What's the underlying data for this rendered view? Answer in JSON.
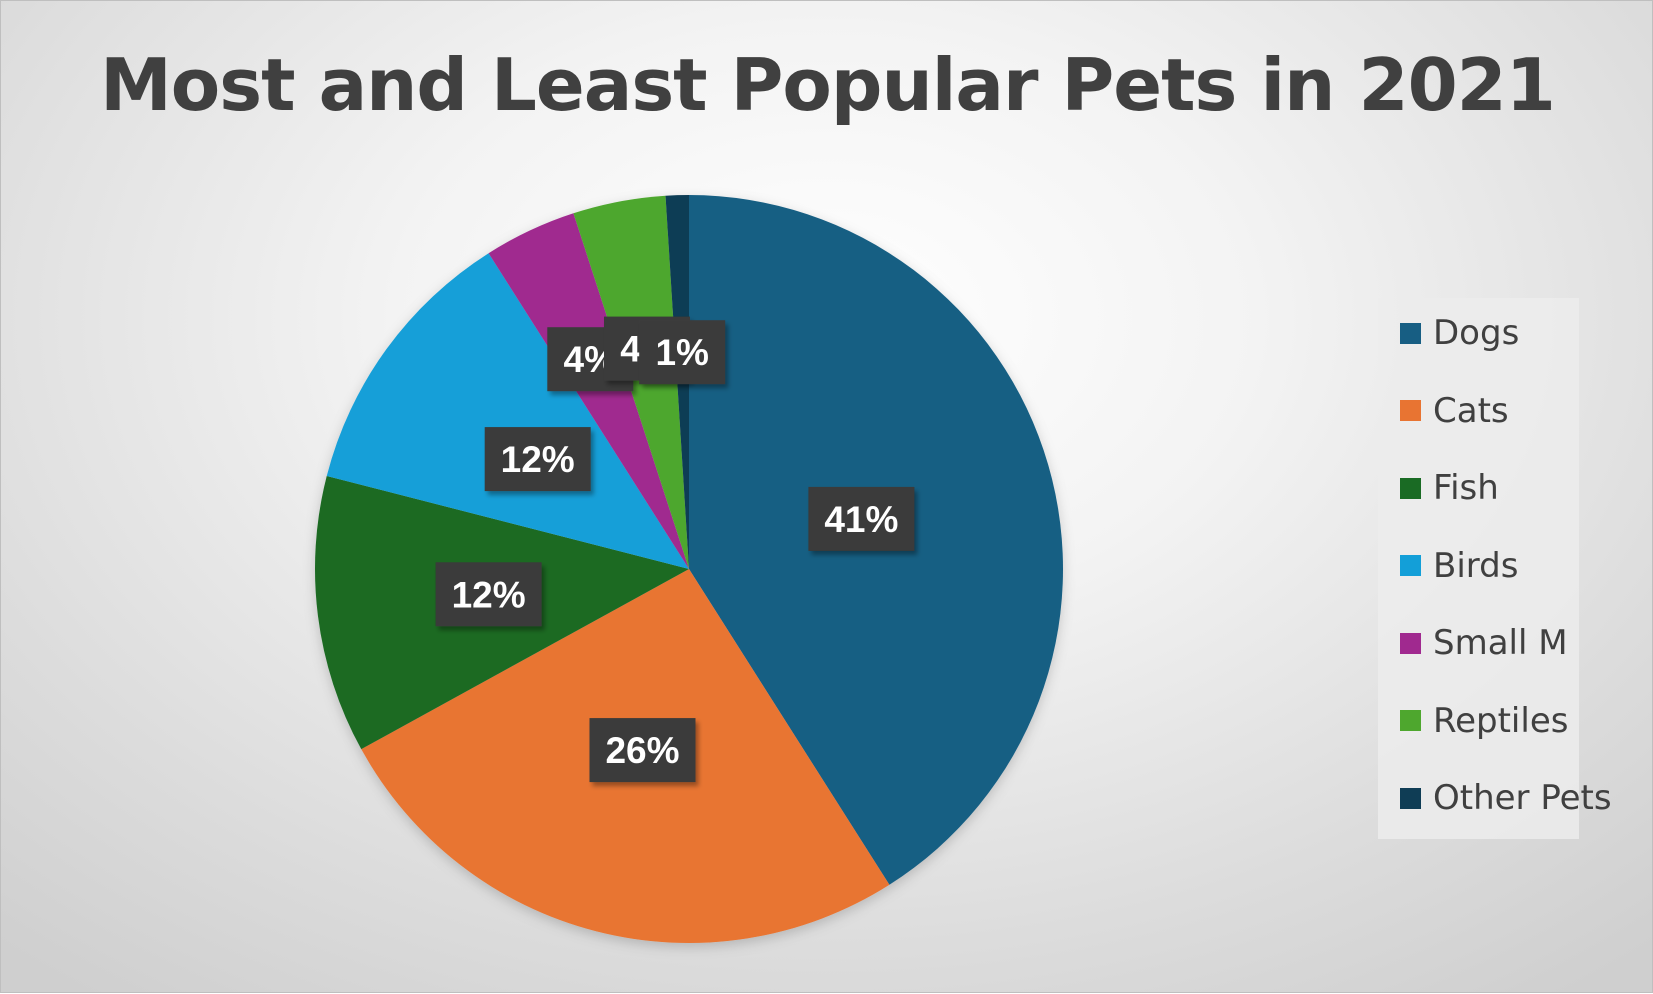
{
  "chart_data": {
    "type": "pie",
    "title": "Most and Least Popular Pets in 2021",
    "categories": [
      "Dogs",
      "Cats",
      "Fish",
      "Birds",
      "Small M",
      "Reptiles",
      "Other Pets"
    ],
    "values": [
      41,
      26,
      12,
      12,
      4,
      4,
      1
    ],
    "data_labels": [
      "41%",
      "26%",
      "12%",
      "12%",
      "4%",
      "4%",
      "1%"
    ],
    "colors": [
      "#175e83",
      "#e87432",
      "#1a6b24",
      "#139fd8",
      "#a0298f",
      "#4ea72e",
      "#0f3d55"
    ],
    "start_angle_deg": 0,
    "direction": "clockwise",
    "legend_position": "right"
  }
}
